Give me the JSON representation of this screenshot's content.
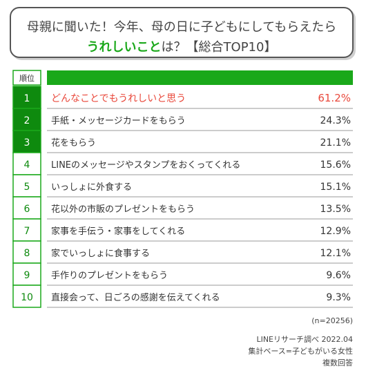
{
  "title": {
    "line1": "母親に聞いた！今年、母の日に子どもにしてもらえたら",
    "line2_highlight": "うれしいこと",
    "line2_rest": "は？【総合TOP10】"
  },
  "chart_data": {
    "type": "table",
    "rank_header": "順位",
    "categories": [
      "どんなことでもうれしいと思う",
      "手紙・メッセージカードをもらう",
      "花をもらう",
      "LINEのメッセージやスタンプをおくってくれる",
      "いっしょに外食する",
      "花以外の市販のプレゼントをもらう",
      "家事を手伝う・家事をしてくれる",
      "家でいっしょに食事する",
      "手作りのプレゼントをもらう",
      "直接会って、日ごろの感謝を伝えてくれる"
    ],
    "ranks": [
      "1",
      "2",
      "3",
      "4",
      "5",
      "6",
      "7",
      "8",
      "9",
      "10"
    ],
    "values": [
      61.2,
      24.3,
      21.1,
      15.6,
      15.1,
      13.5,
      12.9,
      12.1,
      9.6,
      9.3
    ],
    "value_labels": [
      "61.2%",
      "24.3%",
      "21.1%",
      "15.6%",
      "15.1%",
      "13.5%",
      "12.9%",
      "12.1%",
      "9.6%",
      "9.3%"
    ],
    "unit": "%"
  },
  "notes": {
    "sample": "(n=20256)",
    "source": "LINEリサーチ調べ 2022.04",
    "base": "集計ベース=子どもがいる女性",
    "answer_type": "複数回答"
  },
  "colors": {
    "green": "#1aa81a",
    "dark_green": "#0e8a0e",
    "top_text": "#e9483b",
    "text": "#333333",
    "line": "#9a9a9a"
  }
}
